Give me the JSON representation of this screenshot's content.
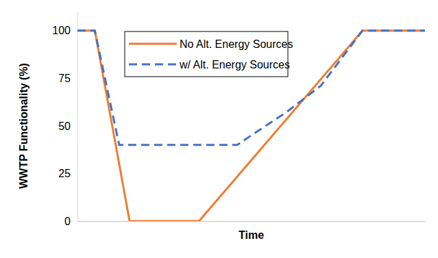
{
  "chart_data": {
    "type": "line",
    "x_label": "Time",
    "y_label": "WWTP Functionality (%)",
    "xlim": [
      0,
      100
    ],
    "ylim": [
      0,
      110
    ],
    "yticks": [
      0,
      25,
      50,
      75,
      100
    ],
    "grid": false,
    "legend": "upper left",
    "tick_labels": "y",
    "series": [
      {
        "name": "No Alt. Energy Sources",
        "color": "#ed7d31",
        "line_style": "solid",
        "x": [
          0,
          5,
          15,
          35,
          82,
          100
        ],
        "values": [
          100,
          100,
          0,
          0,
          100,
          100
        ]
      },
      {
        "name": "w/ Alt. Energy Sources",
        "color": "#4472c4",
        "line_style": "dashed",
        "x": [
          0,
          5,
          12,
          46,
          50,
          60,
          70,
          82,
          100
        ],
        "values": [
          100,
          100,
          40,
          40,
          45,
          57,
          71,
          100,
          100
        ]
      }
    ]
  }
}
